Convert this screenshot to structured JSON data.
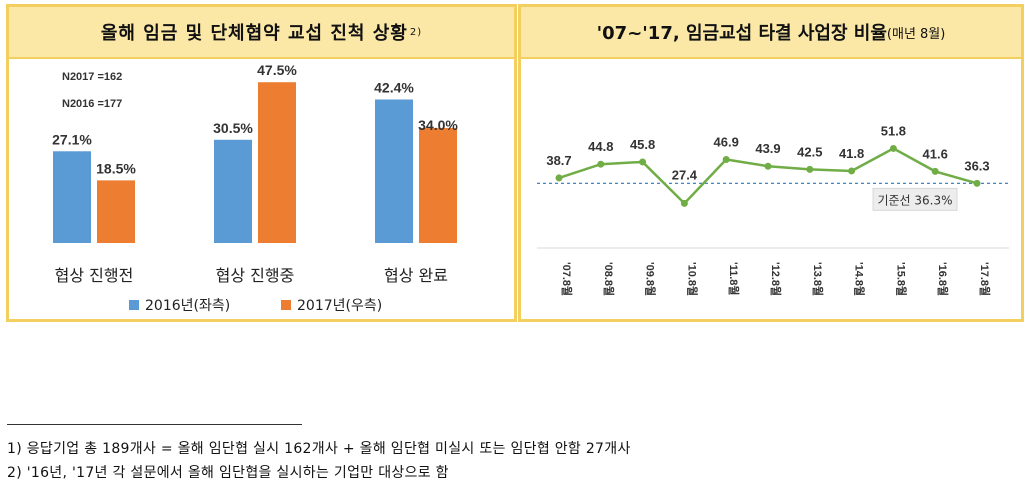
{
  "colors": {
    "series_2016": "#5b9bd5",
    "series_2017": "#ed7d31",
    "line": "#70ad47",
    "baseline": "#2e75b6",
    "header_fill": "#fbe8a7",
    "header_border": "#f2cf5e"
  },
  "left_chart": {
    "title": "올해 임금 및 단체협약 교섭 진척 상황",
    "title_sup": "2)",
    "n_2017": "N2017 =162",
    "n_2016": "N2016 =177"
  },
  "right_chart": {
    "title": "'07~'17, 임금교섭 타결 사업장 비율",
    "title_note": "(매년 8월)",
    "baseline_label": "기준선 36.3%"
  },
  "chart_data": [
    {
      "type": "bar",
      "title": "올해 임금 및 단체협약 교섭 진척 상황",
      "categories": [
        "협상 진행전",
        "협상 진행중",
        "협상 완료"
      ],
      "series": [
        {
          "name": "2016년(좌측)",
          "values": [
            27.1,
            30.5,
            42.4
          ],
          "labels": [
            "27.1%",
            "30.5%",
            "42.4%"
          ]
        },
        {
          "name": "2017년(우측)",
          "values": [
            18.5,
            47.5,
            34.0
          ],
          "labels": [
            "18.5%",
            "47.5%",
            "34.0%"
          ]
        }
      ],
      "ylim": [
        0,
        52
      ],
      "grid": false,
      "legend": "bottom"
    },
    {
      "type": "line",
      "title": "'07~'17, 임금교섭 타결 사업장 비율(매년 8월)",
      "categories": [
        "'07.8월",
        "'08.8월",
        "'09.8월",
        "'10.8월",
        "'11.8월",
        "'12.8월",
        "'13.8월",
        "'14.8월",
        "'15.8월",
        "'16.8월",
        "'17.8월"
      ],
      "values": [
        38.7,
        44.8,
        45.8,
        27.4,
        46.9,
        43.9,
        42.5,
        41.8,
        51.8,
        41.6,
        36.3
      ],
      "labels": [
        "38.7",
        "44.8",
        "45.8",
        "27.4",
        "46.9",
        "43.9",
        "42.5",
        "41.8",
        "51.8",
        "41.6",
        "36.3"
      ],
      "baseline": 36.3,
      "ylim": [
        0,
        60
      ],
      "grid": false
    }
  ],
  "footnotes": [
    "1) 응답기업 총 189개사 = 올해 임단협 실시 162개사 + 올해 임단협 미실시 또는 임단협 안함 27개사",
    "2) '16년, '17년 각 설문에서 올해 임단협을 실시하는 기업만 대상으로 함"
  ]
}
